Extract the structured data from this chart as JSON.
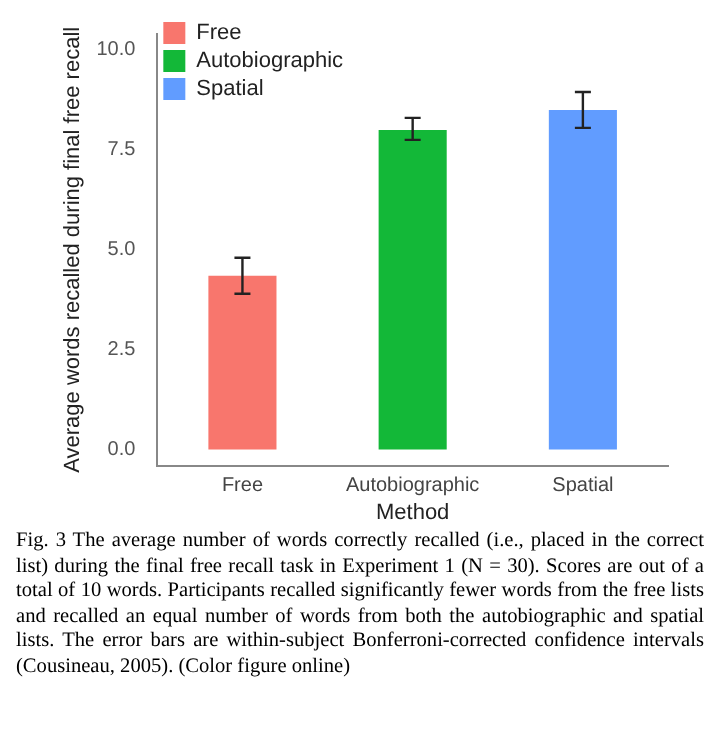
{
  "chart_data": {
    "type": "bar",
    "xlabel": "Method",
    "ylabel": "Average words recalled during final free recall",
    "categories": [
      "Free",
      "Autobiographic",
      "Spatial"
    ],
    "series": [
      {
        "name": "Free",
        "color": "#f8766d",
        "values": [
          4.35,
          null,
          null
        ],
        "errors": [
          [
            3.9,
            4.8
          ],
          null,
          null
        ]
      },
      {
        "name": "Autobiographic",
        "color": "#13b838",
        "values": [
          null,
          8.0,
          null
        ],
        "errors": [
          null,
          [
            7.75,
            8.3
          ],
          null
        ]
      },
      {
        "name": "Spatial",
        "color": "#619cff",
        "values": [
          null,
          null,
          8.5
        ],
        "errors": [
          null,
          null,
          [
            8.05,
            8.95
          ]
        ]
      }
    ],
    "ylim": [
      -0.4,
      10.4
    ],
    "yticks": [
      {
        "value": 0,
        "label": "0.0"
      },
      {
        "value": 2.5,
        "label": "2.5"
      },
      {
        "value": 5,
        "label": "5.0"
      },
      {
        "value": 7.5,
        "label": "7.5"
      },
      {
        "value": 10,
        "label": "10.0"
      }
    ],
    "grid": false,
    "legend": "top left",
    "annotations": [
      "Fig. 3 The average number of words correctly recalled (i.e., placed in the correct list) during the final free recall task in Experiment 1 (N = 30). Scores are out of a total of 10 words. Participants recalled significantly fewer words from the free lists and recalled an equal number of words from both the autobiographic and spatial lists. The error bars are within-subject Bonferroni-corrected confidence intervals (Cousineau, 2005). (Color figure online)"
    ]
  }
}
